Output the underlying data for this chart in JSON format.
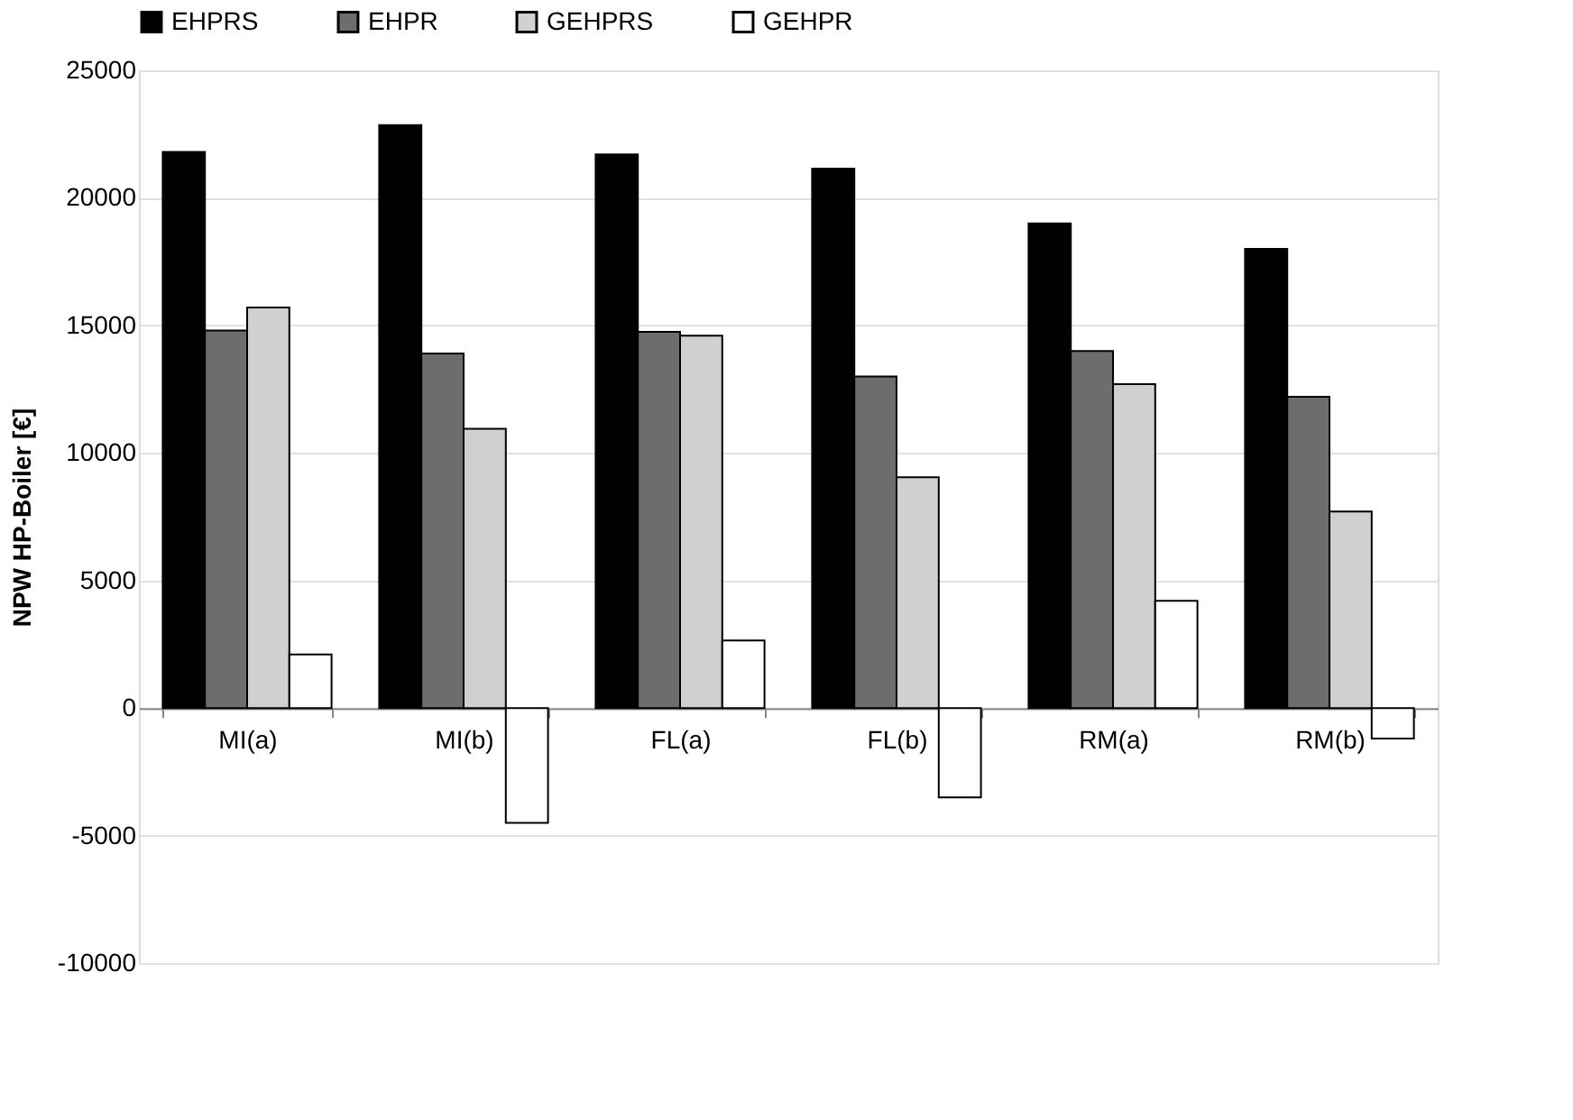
{
  "chart_data": {
    "type": "bar",
    "ylabel": "NPW HP-Boiler [€]",
    "categories": [
      "MI(a)",
      "MI(b)",
      "FL(a)",
      "FL(b)",
      "RM(a)",
      "RM(b)"
    ],
    "series": [
      {
        "name": "EHPRS",
        "color": "#000000",
        "values": [
          21800,
          22850,
          21700,
          21150,
          19000,
          18000
        ]
      },
      {
        "name": "EHPR",
        "color": "#6d6d6d",
        "values": [
          14800,
          13900,
          14750,
          13000,
          14000,
          12200
        ]
      },
      {
        "name": "GEHPRS",
        "color": "#d0d0d0",
        "values": [
          15700,
          10950,
          14600,
          9050,
          12700,
          7700
        ]
      },
      {
        "name": "GEHPR",
        "color": "#ffffff",
        "values": [
          2100,
          -4500,
          2650,
          -3500,
          4200,
          -1200
        ]
      }
    ],
    "ylim": [
      -10000,
      25000
    ],
    "yticks": [
      -10000,
      -5000,
      0,
      5000,
      10000,
      15000,
      20000,
      25000
    ],
    "grid": "y",
    "legend": "top"
  }
}
